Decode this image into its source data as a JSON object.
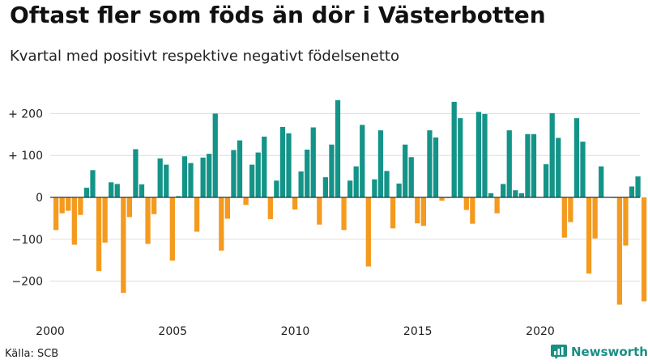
{
  "colors": {
    "positive": "#149488",
    "negative": "#f49a1f",
    "grid": "#dddddd",
    "axis": "#333333",
    "brand": "#1a8f84"
  },
  "brand": {
    "name": "Newsworthy",
    "logo_icon": "bar-chart-icon"
  },
  "source": "Källa: SCB",
  "chart_data": {
    "type": "bar",
    "title": "Oftast fler som föds än dör i Västerbotten",
    "subtitle": "Kvartal med positivt respektive negativt födelsenetto",
    "xlabel": "",
    "ylabel": "",
    "ylim": [
      -270,
      245
    ],
    "y_ticks": [
      {
        "value": 200,
        "label": "+ 200"
      },
      {
        "value": 100,
        "label": "+ 100"
      },
      {
        "value": 0,
        "label": "0"
      },
      {
        "value": -100,
        "label": "−100"
      },
      {
        "value": -200,
        "label": "−200"
      }
    ],
    "x_ticks": [
      {
        "value": 2000,
        "label": "2000"
      },
      {
        "value": 2005,
        "label": "2005"
      },
      {
        "value": 2010,
        "label": "2010"
      },
      {
        "value": 2015,
        "label": "2015"
      },
      {
        "value": 2020,
        "label": "2020"
      }
    ],
    "start_year": 2000,
    "periods_per_year": 4,
    "values": [
      -78,
      -38,
      -32,
      -113,
      -42,
      23,
      65,
      -176,
      -108,
      36,
      32,
      -228,
      -47,
      115,
      31,
      -111,
      -40,
      93,
      78,
      -151,
      3,
      98,
      82,
      -82,
      95,
      104,
      200,
      -127,
      -51,
      113,
      136,
      -18,
      78,
      107,
      145,
      -52,
      40,
      168,
      153,
      -29,
      62,
      114,
      167,
      -65,
      48,
      126,
      232,
      -78,
      40,
      74,
      173,
      -165,
      43,
      160,
      63,
      -74,
      33,
      126,
      96,
      -62,
      -68,
      160,
      143,
      -8,
      -2,
      228,
      189,
      -30,
      -63,
      204,
      199,
      10,
      -38,
      32,
      160,
      17,
      10,
      151,
      151,
      1,
      79,
      201,
      142,
      -96,
      -59,
      189,
      133,
      -182,
      -98,
      74,
      1,
      -1,
      -256,
      -115,
      26,
      50,
      -248
    ]
  }
}
